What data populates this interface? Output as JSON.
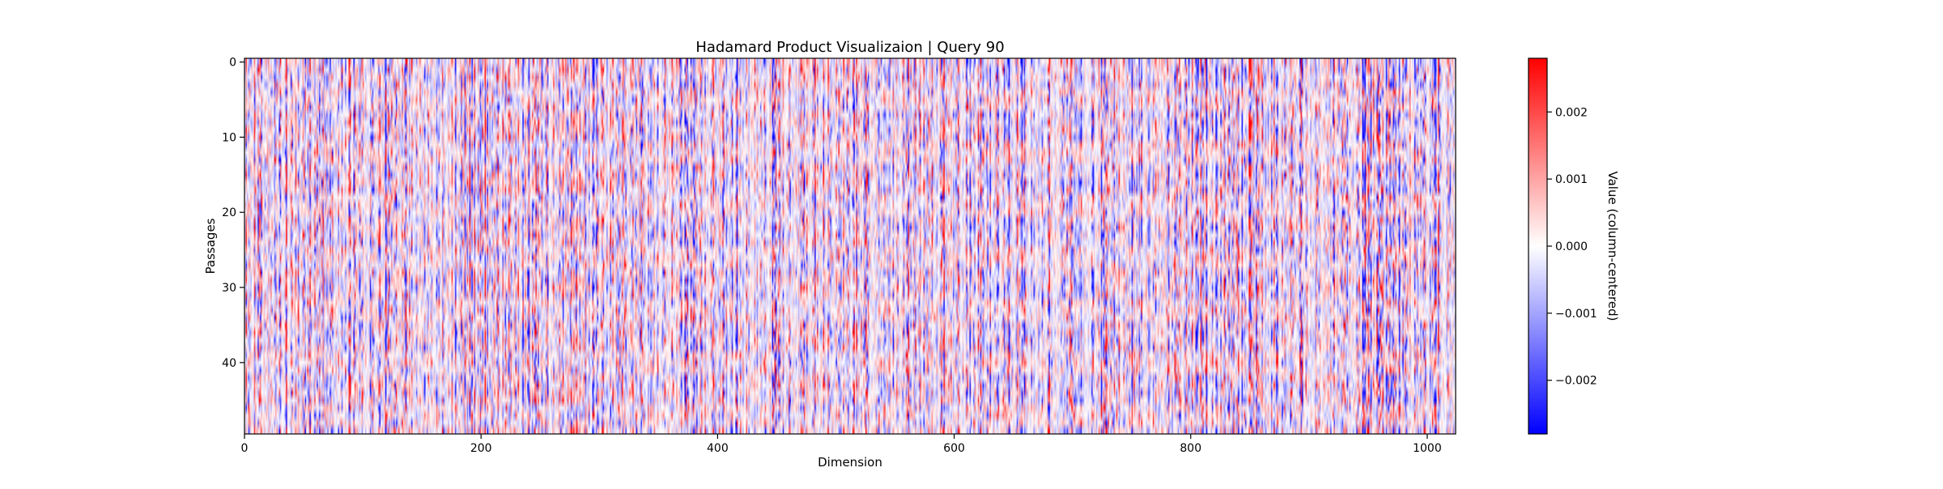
{
  "chart_data": {
    "type": "heatmap",
    "title": "Hadamard Product Visualizaion | Query 90",
    "xlabel": "Dimension",
    "ylabel": "Passages",
    "x_range": [
      0,
      1024
    ],
    "y_range": [
      0,
      50
    ],
    "x_ticks": [
      0,
      200,
      400,
      600,
      800,
      1000
    ],
    "y_ticks": [
      0,
      10,
      20,
      30,
      40
    ],
    "colormap": {
      "name": "bwr",
      "low": "#0000ff",
      "mid": "#ffffff",
      "high": "#ff0000"
    },
    "colorbar": {
      "label": "Value (column-centered)",
      "range": [
        -0.0028,
        0.0028
      ],
      "ticks": [
        -0.002,
        -0.001,
        0.0,
        0.001,
        0.002
      ],
      "tick_labels": [
        "−0.002",
        "−0.001",
        "0.000",
        "0.001",
        "0.002"
      ]
    }
  }
}
